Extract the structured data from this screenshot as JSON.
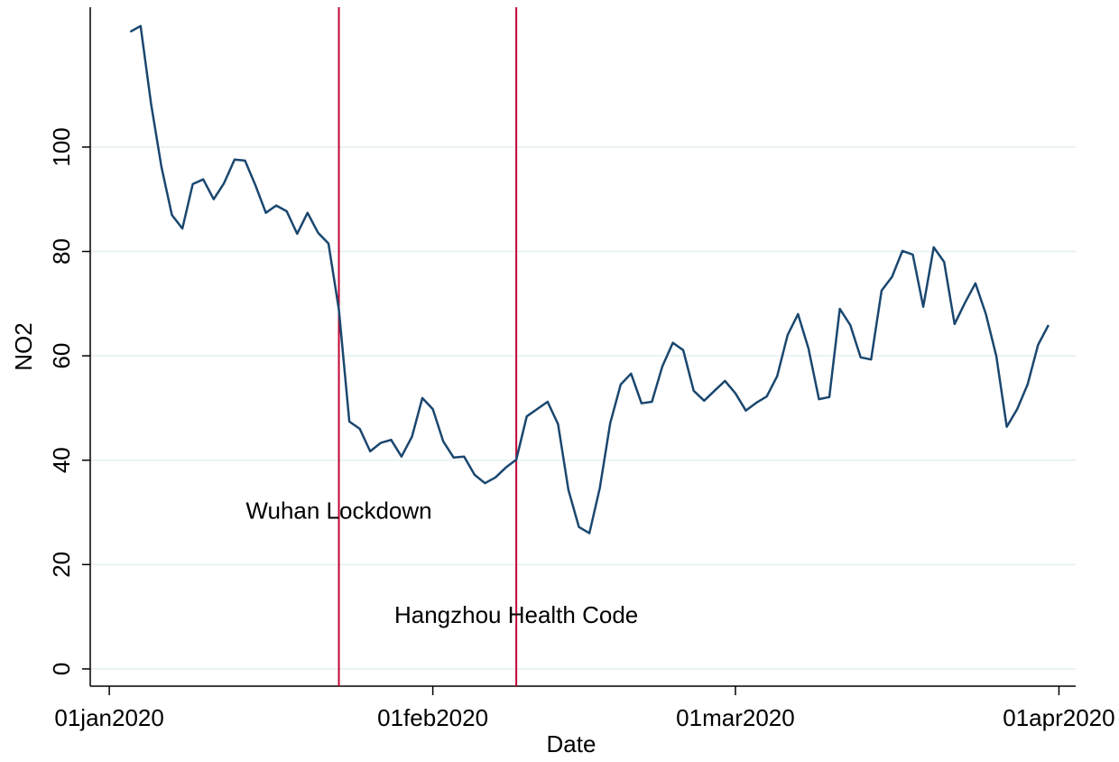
{
  "chart_data": {
    "type": "line",
    "xlabel": "Date",
    "ylabel": "NO2",
    "x_start": "2020-01-03",
    "series": [
      {
        "name": "NO2",
        "color": "#1a476f",
        "values": [
          122.1,
          123.2,
          108.3,
          96.2,
          87.0,
          84.4,
          92.9,
          93.8,
          90.0,
          93.1,
          97.6,
          97.4,
          92.7,
          87.4,
          88.8,
          87.7,
          83.4,
          87.4,
          83.6,
          81.5,
          68.9,
          47.4,
          46.0,
          41.7,
          43.3,
          43.9,
          40.7,
          44.5,
          51.9,
          49.8,
          43.6,
          40.5,
          40.7,
          37.2,
          35.6,
          36.7,
          38.6,
          40.1,
          48.4,
          49.8,
          51.2,
          46.9,
          34.3,
          27.2,
          26.0,
          34.6,
          47.1,
          54.5,
          56.6,
          50.9,
          51.2,
          58.0,
          62.5,
          61.1,
          53.3,
          51.4,
          53.3,
          55.2,
          52.8,
          49.5,
          51.0,
          52.2,
          56.1,
          64.0,
          68.0,
          61.4,
          51.7,
          52.1,
          69.0,
          65.9,
          59.7,
          59.3,
          72.5,
          75.1,
          80.1,
          79.4,
          69.4,
          80.8,
          78.0,
          66.1,
          70.2,
          73.9,
          68.0,
          59.9,
          46.4,
          49.8,
          54.5,
          62.1,
          65.9
        ]
      }
    ],
    "xlim": [
      "2019-12-30",
      "2020-04-02"
    ],
    "xticks": [
      {
        "value": "2020-01-01",
        "label": "01jan2020"
      },
      {
        "value": "2020-02-01",
        "label": "01feb2020"
      },
      {
        "value": "2020-03-01",
        "label": "01mar2020"
      },
      {
        "value": "2020-04-01",
        "label": "01apr2020"
      }
    ],
    "ylim": [
      -3.3,
      126.8
    ],
    "yticks": [
      0,
      20,
      40,
      60,
      80,
      100
    ],
    "grid": true,
    "grid_color": "#eaf2f3",
    "vlines": [
      {
        "x": "2020-01-23",
        "color": "#c10534"
      },
      {
        "x": "2020-02-09",
        "color": "#c10534"
      }
    ],
    "annotations": [
      {
        "text": "Wuhan Lockdown",
        "x": "2020-01-23",
        "y": 30
      },
      {
        "text": "Hangzhou Health Code",
        "x": "2020-02-09",
        "y": 10
      }
    ]
  }
}
